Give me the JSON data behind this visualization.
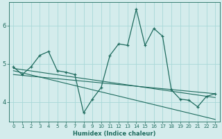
{
  "xlabel": "Humidex (Indice chaleur)",
  "bg_color": "#d4ecec",
  "grid_color": "#a8d8d8",
  "line_color": "#1e6b5e",
  "xlim": [
    -0.5,
    23.5
  ],
  "ylim": [
    3.5,
    6.6
  ],
  "yticks": [
    4,
    5,
    6
  ],
  "xticks": [
    0,
    1,
    2,
    3,
    4,
    5,
    6,
    7,
    8,
    9,
    10,
    11,
    12,
    13,
    14,
    15,
    16,
    17,
    18,
    19,
    20,
    21,
    22,
    23
  ],
  "main_x": [
    0,
    1,
    2,
    3,
    4,
    5,
    6,
    7,
    8,
    9,
    10,
    11,
    12,
    13,
    14,
    15,
    16,
    17,
    18,
    19,
    20,
    21,
    22,
    23
  ],
  "main_y": [
    4.92,
    4.72,
    4.92,
    5.22,
    5.32,
    4.82,
    4.78,
    4.72,
    3.72,
    4.08,
    4.38,
    5.22,
    5.52,
    5.48,
    6.42,
    5.48,
    5.92,
    5.72,
    4.32,
    4.08,
    4.05,
    3.88,
    4.15,
    4.22
  ],
  "trend1_x": [
    0,
    23
  ],
  "trend1_y": [
    4.88,
    4.12
  ],
  "trend2_x": [
    0,
    23
  ],
  "trend2_y": [
    4.72,
    4.22
  ],
  "trend3_x": [
    0,
    23
  ],
  "trend3_y": [
    4.82,
    3.55
  ]
}
